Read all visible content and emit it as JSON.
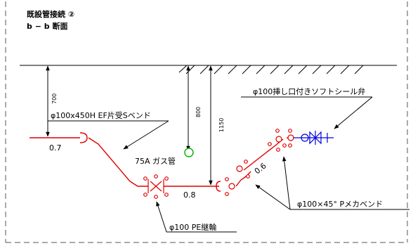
{
  "title": "既設管接続 ②",
  "section": "b − b 断面",
  "labels": {
    "reducer_bend": "φ100x450H EF片受Sベンド",
    "gas_pipe": "75A ガス管",
    "pe_coupling": "φ100 PE継輪",
    "soft_seal_valve": "φ100挿し口付きソフトシール弁",
    "mecha_bend": "φ100×45° Pメカベンド"
  },
  "dimensions": {
    "d700": "700",
    "d800": "800",
    "d1150": "1150",
    "len_07": "0.7",
    "len_08": "0.8",
    "len_06": "0.6"
  },
  "colors": {
    "pipe": "#e00000",
    "gas": "#00b000",
    "valve": "#0000e0",
    "line": "#000000",
    "frame": "#555555"
  }
}
